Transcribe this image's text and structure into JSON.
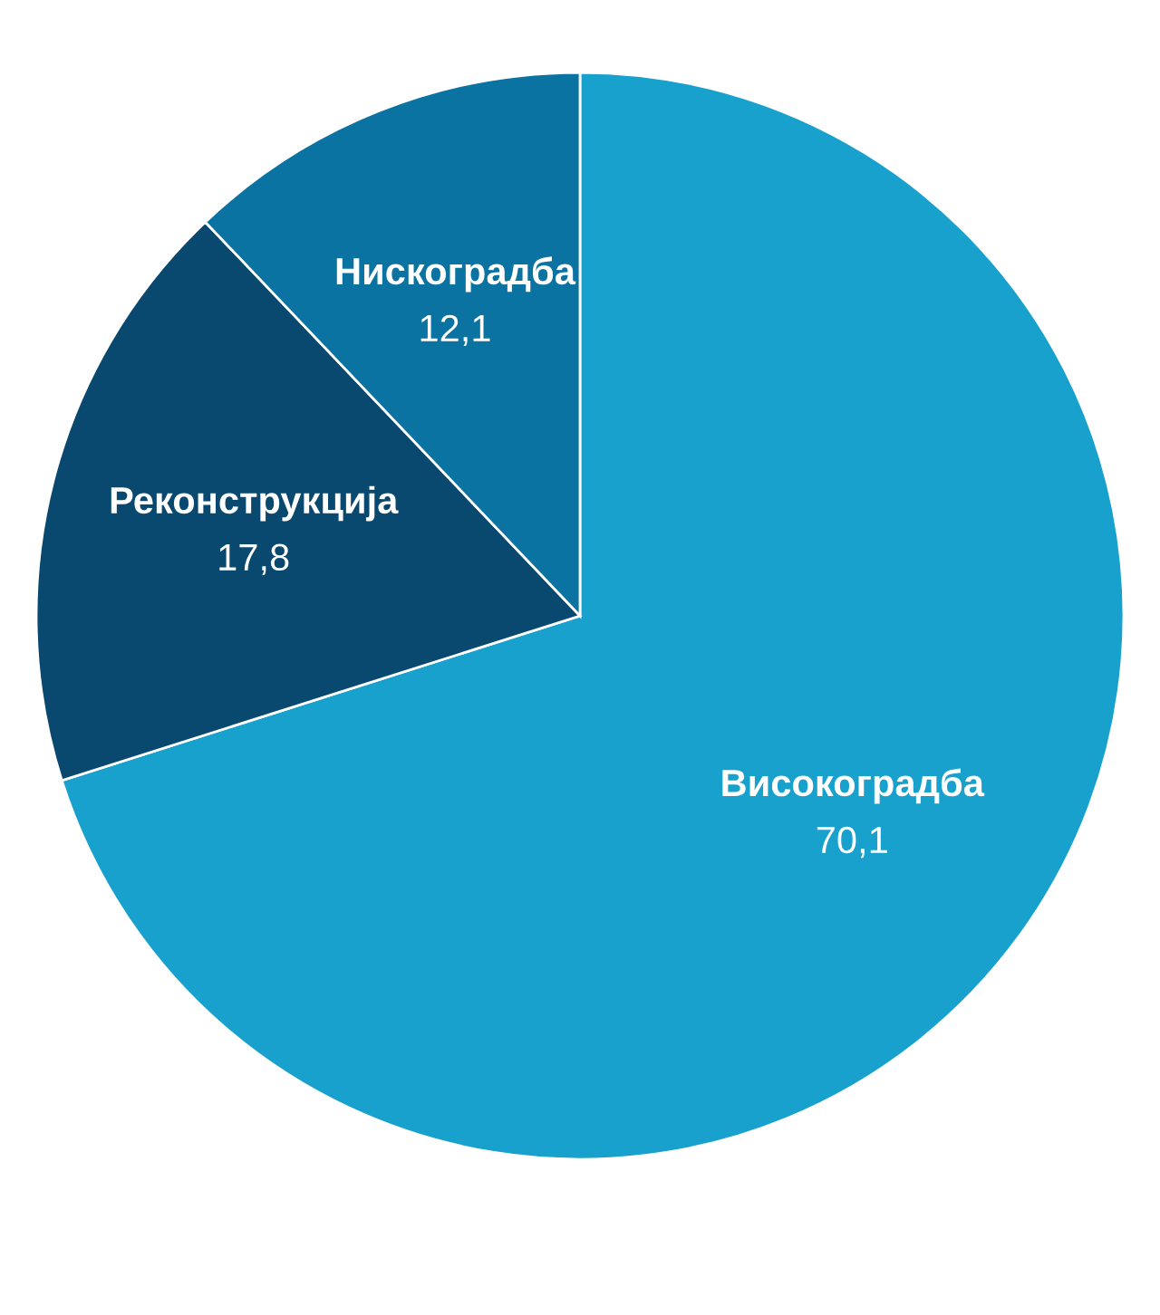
{
  "chart_data": {
    "type": "pie",
    "categories": [
      "Високоградба",
      "Реконструкција",
      "Нискоградба"
    ],
    "values": [
      70.1,
      17.8,
      12.1
    ],
    "value_labels": [
      "70,1",
      "17,8",
      "12,1"
    ],
    "colors": [
      "#18a1cd",
      "#09496f",
      "#0a73a1"
    ]
  }
}
